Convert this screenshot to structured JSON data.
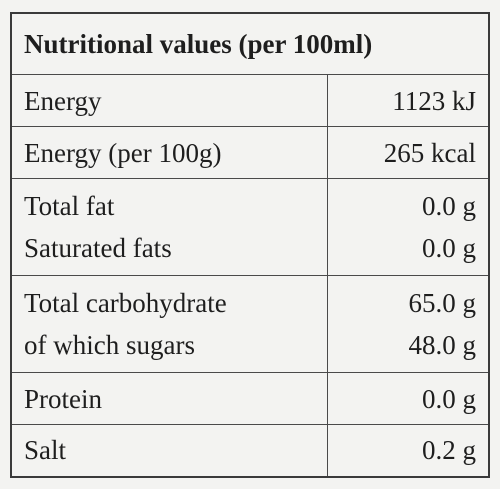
{
  "header": {
    "title": "Nutritional values (per 100ml)"
  },
  "table": {
    "rows": [
      [
        [
          "Energy",
          "1123 kJ"
        ]
      ],
      [
        [
          "Energy (per 100g)",
          "265 kcal"
        ]
      ],
      [
        [
          "Total fat",
          "0.0 g"
        ],
        [
          "Saturated fats",
          "0.0 g"
        ]
      ],
      [
        [
          "Total carbohydrate",
          "65.0 g"
        ],
        [
          "of which sugars",
          "48.0 g"
        ]
      ],
      [
        [
          "Protein",
          "0.0 g"
        ]
      ],
      [
        [
          "Salt",
          "0.2 g"
        ]
      ]
    ]
  }
}
